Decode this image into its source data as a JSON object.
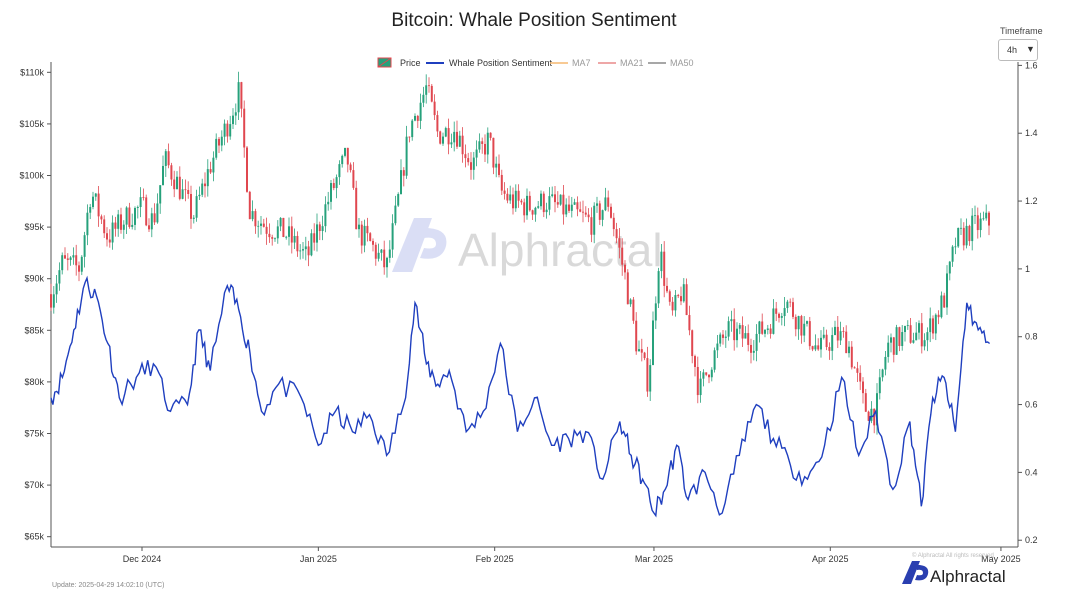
{
  "chart_data": {
    "type": "line",
    "title": "Bitcoin: Whale Position Sentiment",
    "x_range": [
      "2024-11-15",
      "2025-05-04"
    ],
    "x_ticks": [
      {
        "date": "2024-12-01",
        "label": "Dec 2024"
      },
      {
        "date": "2025-01-01",
        "label": "Jan 2025"
      },
      {
        "date": "2025-02-01",
        "label": "Feb 2025"
      },
      {
        "date": "2025-03-01",
        "label": "Mar 2025"
      },
      {
        "date": "2025-04-01",
        "label": "Apr 2025"
      },
      {
        "date": "2025-05-01",
        "label": "May 2025"
      }
    ],
    "y_left": {
      "min": 64000,
      "max": 111000,
      "ticks": [
        {
          "value": 65000,
          "label": "$65k"
        },
        {
          "value": 70000,
          "label": "$70k"
        },
        {
          "value": 75000,
          "label": "$75k"
        },
        {
          "value": 80000,
          "label": "$80k"
        },
        {
          "value": 85000,
          "label": "$85k"
        },
        {
          "value": 90000,
          "label": "$90k"
        },
        {
          "value": 95000,
          "label": "$95k"
        },
        {
          "value": 100000,
          "label": "$100k"
        },
        {
          "value": 105000,
          "label": "$105k"
        },
        {
          "value": 110000,
          "label": "$110k"
        }
      ]
    },
    "y_right": {
      "min": 0.18,
      "max": 1.61,
      "ticks": [
        {
          "value": 0.2,
          "label": "0.2"
        },
        {
          "value": 0.4,
          "label": "0.4"
        },
        {
          "value": 0.6,
          "label": "0.6"
        },
        {
          "value": 0.8,
          "label": "0.8"
        },
        {
          "value": 1.0,
          "label": "1"
        },
        {
          "value": 1.2,
          "label": "1.2"
        },
        {
          "value": 1.4,
          "label": "1.4"
        },
        {
          "value": 1.6,
          "label": "1.6"
        }
      ]
    },
    "grid": false,
    "legend_position": "top-center",
    "legend": [
      {
        "label": "Price",
        "type": "candlestick",
        "color": "#26a17b",
        "color_down": "#e0474f"
      },
      {
        "label": "Whale Position Sentiment",
        "type": "line",
        "color": "#1f3fbf"
      },
      {
        "label": "MA7",
        "type": "line",
        "color": "#f5b971",
        "muted": true
      },
      {
        "label": "MA21",
        "type": "line",
        "color": "#e88a8a",
        "muted": true
      },
      {
        "label": "MA50",
        "type": "line",
        "color": "#8a8a8a",
        "muted": true
      }
    ],
    "series": [
      {
        "name": "Price",
        "axis": "left",
        "x": [
          "2024-11-15",
          "2024-11-17",
          "2024-11-20",
          "2024-11-22",
          "2024-11-25",
          "2024-11-28",
          "2024-12-01",
          "2024-12-03",
          "2024-12-05",
          "2024-12-07",
          "2024-12-10",
          "2024-12-13",
          "2024-12-16",
          "2024-12-18",
          "2024-12-20",
          "2024-12-23",
          "2024-12-26",
          "2024-12-30",
          "2025-01-03",
          "2025-01-06",
          "2025-01-08",
          "2025-01-10",
          "2025-01-13",
          "2025-01-15",
          "2025-01-17",
          "2025-01-20",
          "2025-01-22",
          "2025-01-25",
          "2025-01-28",
          "2025-01-31",
          "2025-02-02",
          "2025-02-04",
          "2025-02-07",
          "2025-02-10",
          "2025-02-14",
          "2025-02-18",
          "2025-02-21",
          "2025-02-24",
          "2025-02-26",
          "2025-02-28",
          "2025-03-02",
          "2025-03-04",
          "2025-03-06",
          "2025-03-09",
          "2025-03-11",
          "2025-03-14",
          "2025-03-18",
          "2025-03-21",
          "2025-03-24",
          "2025-03-27",
          "2025-03-30",
          "2025-04-02",
          "2025-04-04",
          "2025-04-07",
          "2025-04-09",
          "2025-04-11",
          "2025-04-14",
          "2025-04-18",
          "2025-04-21",
          "2025-04-23",
          "2025-04-26",
          "2025-04-29"
        ],
        "y": [
          88500,
          91500,
          91000,
          98500,
          94000,
          95800,
          97000,
          95500,
          101500,
          99500,
          96000,
          101000,
          105000,
          108000,
          96500,
          95000,
          94500,
          92000,
          98000,
          102000,
          94500,
          93500,
          91000,
          97500,
          104500,
          108500,
          104000,
          104500,
          101000,
          103500,
          98500,
          97500,
          97000,
          97500,
          96500,
          95500,
          97500,
          90000,
          83500,
          80000,
          93000,
          86000,
          89000,
          79000,
          82000,
          85000,
          84000,
          85500,
          88000,
          85500,
          83000,
          84500,
          84000,
          77500,
          77000,
          83500,
          84500,
          84700,
          88000,
          93500,
          95000,
          95500
        ]
      },
      {
        "name": "Whale Position Sentiment",
        "axis": "right",
        "x": [
          "2024-11-15",
          "2024-11-17",
          "2024-11-19",
          "2024-11-21",
          "2024-11-23",
          "2024-11-25",
          "2024-11-27",
          "2024-11-30",
          "2024-12-03",
          "2024-12-06",
          "2024-12-09",
          "2024-12-11",
          "2024-12-13",
          "2024-12-16",
          "2024-12-18",
          "2024-12-20",
          "2024-12-22",
          "2024-12-25",
          "2024-12-29",
          "2025-01-01",
          "2025-01-04",
          "2025-01-07",
          "2025-01-10",
          "2025-01-13",
          "2025-01-16",
          "2025-01-18",
          "2025-01-20",
          "2025-01-22",
          "2025-01-24",
          "2025-01-27",
          "2025-01-30",
          "2025-02-02",
          "2025-02-05",
          "2025-02-08",
          "2025-02-11",
          "2025-02-14",
          "2025-02-17",
          "2025-02-20",
          "2025-02-23",
          "2025-02-25",
          "2025-02-27",
          "2025-03-01",
          "2025-03-03",
          "2025-03-05",
          "2025-03-07",
          "2025-03-10",
          "2025-03-13",
          "2025-03-16",
          "2025-03-19",
          "2025-03-22",
          "2025-03-25",
          "2025-03-28",
          "2025-03-31",
          "2025-04-03",
          "2025-04-06",
          "2025-04-09",
          "2025-04-12",
          "2025-04-15",
          "2025-04-17",
          "2025-04-19",
          "2025-04-21",
          "2025-04-23",
          "2025-04-25",
          "2025-04-27",
          "2025-04-29"
        ],
        "y": [
          0.62,
          0.68,
          0.82,
          0.96,
          0.92,
          0.78,
          0.62,
          0.68,
          0.72,
          0.58,
          0.6,
          0.82,
          0.7,
          0.95,
          0.88,
          0.75,
          0.58,
          0.66,
          0.62,
          0.48,
          0.58,
          0.52,
          0.57,
          0.45,
          0.6,
          0.9,
          0.72,
          0.66,
          0.7,
          0.52,
          0.58,
          0.78,
          0.52,
          0.62,
          0.48,
          0.5,
          0.52,
          0.38,
          0.55,
          0.45,
          0.38,
          0.28,
          0.35,
          0.48,
          0.32,
          0.4,
          0.28,
          0.45,
          0.6,
          0.5,
          0.42,
          0.38,
          0.48,
          0.68,
          0.45,
          0.58,
          0.35,
          0.55,
          0.3,
          0.62,
          0.68,
          0.52,
          0.9,
          0.82,
          0.78
        ]
      }
    ]
  },
  "controls": {
    "timeframe_label": "Timeframe",
    "timeframe_value": "4h"
  },
  "footer": {
    "update": "Update: 2025-04-29 14:02:10 (UTC)",
    "watermark_brand": "Alphractal",
    "footer_brand": "Alphractal",
    "copyright": "© Alphractal All rights reserved"
  },
  "colors": {
    "up": "#26a17b",
    "down": "#e0474f",
    "sentiment": "#1f3fbf",
    "axis": "#333333"
  }
}
